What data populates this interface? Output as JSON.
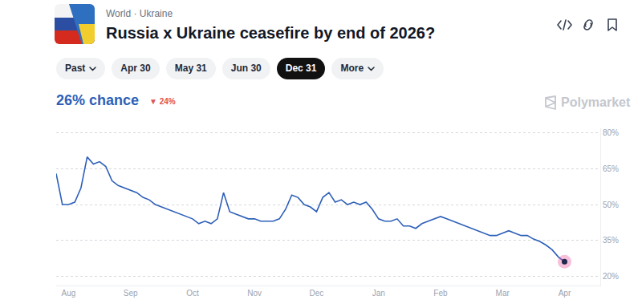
{
  "page": {
    "category": "World · Ukraine",
    "title": "Russia x Ukraine ceasefire by end of 2026?",
    "buttons": [
      {
        "label": "Past",
        "menu": true
      },
      {
        "label": "Apr 30"
      },
      {
        "label": "May 31"
      },
      {
        "label": "Jun 30"
      },
      {
        "label": "Dec 31",
        "selected": true
      },
      {
        "label": "More",
        "menu": true
      }
    ],
    "chance": "26% chance",
    "change": "▼ 24%",
    "brand": "Polymarket"
  },
  "chart_data": {
    "type": "line",
    "color": "#2d5fb8",
    "grid": true,
    "categories": [
      null,
      null,
      "Aug",
      null,
      null,
      null,
      null,
      null,
      null,
      null,
      null,
      null,
      "Sep",
      null,
      null,
      null,
      null,
      null,
      null,
      null,
      null,
      null,
      "Oct",
      null,
      null,
      null,
      null,
      null,
      null,
      null,
      null,
      null,
      "Nov",
      null,
      null,
      null,
      null,
      null,
      null,
      null,
      null,
      null,
      "Dec",
      null,
      null,
      null,
      null,
      null,
      null,
      null,
      null,
      null,
      "Jan",
      null,
      null,
      null,
      null,
      null,
      null,
      null,
      null,
      null,
      "Feb",
      null,
      null,
      null,
      null,
      null,
      null,
      null,
      null,
      null,
      "Mar",
      null,
      null,
      null,
      null,
      null,
      null,
      null,
      null,
      null,
      "Apr"
    ],
    "values": [
      63,
      50,
      50,
      51,
      57,
      70,
      67,
      68,
      66,
      60,
      58,
      57,
      56,
      55,
      53,
      52,
      50,
      49,
      48,
      47,
      46,
      45,
      44,
      42,
      43,
      42,
      44,
      55,
      47,
      46,
      45,
      44,
      44,
      43,
      43,
      43,
      44,
      48,
      54,
      53,
      50,
      49,
      47,
      53,
      55,
      51,
      52,
      50,
      51,
      50,
      51,
      48,
      44,
      43,
      43,
      44,
      41,
      41,
      40,
      42,
      43,
      44,
      45,
      44,
      43,
      42,
      41,
      40,
      39,
      38,
      37,
      37,
      38,
      39,
      38,
      37,
      37,
      35.5,
      34.5,
      33,
      31,
      28,
      26
    ],
    "ylim": [
      16,
      82
    ],
    "yticks": [
      {
        "value": 20,
        "label": "20%"
      },
      {
        "value": 35,
        "label": "35%"
      },
      {
        "value": 50,
        "label": "50%"
      },
      {
        "value": 65,
        "label": "65%"
      },
      {
        "value": 80,
        "label": "80%"
      }
    ]
  }
}
